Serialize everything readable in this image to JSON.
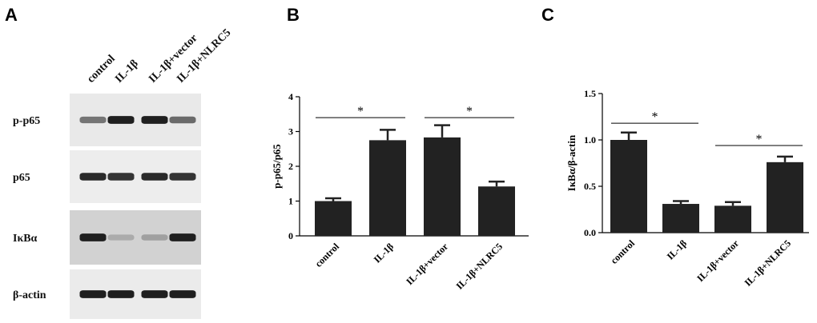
{
  "panels": {
    "a": {
      "letter": "A"
    },
    "b": {
      "letter": "B"
    },
    "c": {
      "letter": "C"
    }
  },
  "blot": {
    "lanes": [
      "control",
      "IL-1β",
      "IL-1β+vector",
      "IL-1β+NLRC5"
    ],
    "rows": [
      {
        "label": "p-p65",
        "background": "#e9e9e9",
        "intensity": [
          0.55,
          0.95,
          0.95,
          0.6
        ]
      },
      {
        "label": "p65",
        "background": "#ededed",
        "intensity": [
          0.9,
          0.85,
          0.9,
          0.85
        ]
      },
      {
        "label": "IκBα",
        "background": "#d2d2d2",
        "intensity": [
          0.95,
          0.3,
          0.35,
          0.95
        ]
      },
      {
        "label": "β-actin",
        "background": "#ebebeb",
        "intensity": [
          0.95,
          0.95,
          0.95,
          0.95
        ]
      }
    ]
  },
  "chart_data": [
    {
      "type": "bar",
      "categories": [
        "control",
        "IL-1β",
        "IL-1β+vector",
        "IL-1β+NLRC5"
      ],
      "values": [
        1.0,
        2.75,
        2.83,
        1.42
      ],
      "errors": [
        0.08,
        0.3,
        0.35,
        0.14
      ],
      "ylabel": "p-p65/p65",
      "ylim": [
        0,
        4
      ],
      "yticks": [
        "0",
        "1",
        "2",
        "3",
        "4"
      ],
      "ytick_values": [
        0,
        1,
        2,
        3,
        4
      ],
      "significance": [
        {
          "from": 0,
          "to": 1,
          "y": 3.4,
          "label": "*"
        },
        {
          "from": 2,
          "to": 3,
          "y": 3.4,
          "label": "*"
        }
      ],
      "bar_color": "#222222"
    },
    {
      "type": "bar",
      "categories": [
        "control",
        "IL-1β",
        "IL-1β+vector",
        "IL-1β+NLRC5"
      ],
      "values": [
        1.0,
        0.31,
        0.29,
        0.76
      ],
      "errors": [
        0.08,
        0.03,
        0.04,
        0.06
      ],
      "ylabel": "IκBα/β-actin",
      "ylim": [
        0,
        1.5
      ],
      "yticks": [
        "0.0",
        "0.5",
        "1.0",
        "1.5"
      ],
      "ytick_values": [
        0,
        0.5,
        1.0,
        1.5
      ],
      "significance": [
        {
          "from": 0,
          "to": 1,
          "y": 1.18,
          "label": "*"
        },
        {
          "from": 2,
          "to": 3,
          "y": 0.94,
          "label": "*"
        }
      ],
      "bar_color": "#222222"
    }
  ]
}
